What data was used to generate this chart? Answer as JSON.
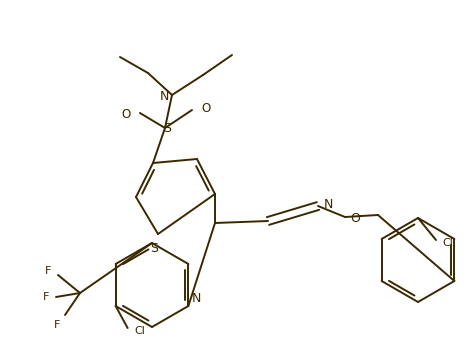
{
  "bg_color": "#ffffff",
  "line_color": "#3a2800",
  "lw": 1.4,
  "figsize": [
    4.67,
    3.6
  ],
  "dpi": 100,
  "xlim": [
    0,
    467
  ],
  "ylim": [
    0,
    360
  ]
}
